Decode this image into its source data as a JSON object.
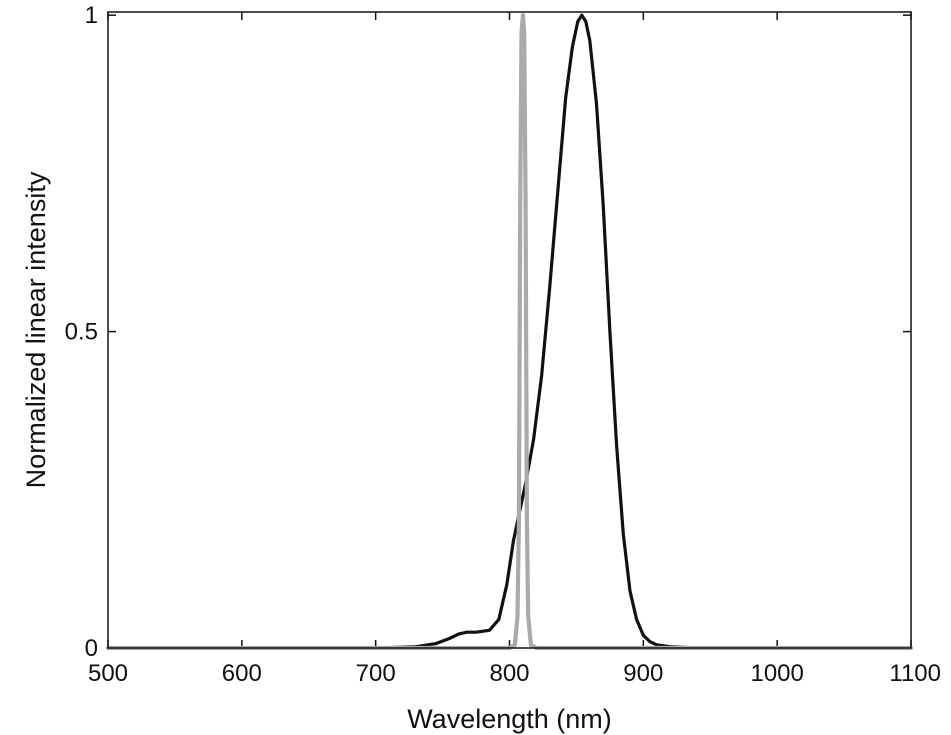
{
  "chart_data": {
    "type": "line",
    "title": "",
    "xlabel": "Wavelength (nm)",
    "ylabel": "Normalized linear intensity",
    "xlim": [
      500,
      1100
    ],
    "ylim": [
      0,
      1.005
    ],
    "grid": false,
    "legend": "none",
    "x_ticks": [
      500,
      600,
      700,
      800,
      900,
      1000,
      1100
    ],
    "x_tick_labels": [
      "500",
      "600",
      "700",
      "800",
      "900",
      "1000",
      "1100"
    ],
    "y_ticks": [
      0,
      0.5,
      1
    ],
    "y_tick_labels": [
      "0",
      "0.5",
      "1"
    ],
    "series": [
      {
        "color": "#111111",
        "x": [
          500,
          600,
          700,
          730,
          745,
          755,
          762,
          768,
          775,
          785,
          792,
          798,
          803,
          808,
          812,
          818,
          824,
          830,
          836,
          842,
          847,
          851,
          854,
          857,
          860,
          865,
          870,
          875,
          880,
          885,
          890,
          895,
          900,
          905,
          910,
          920,
          940,
          1000,
          1100
        ],
        "y": [
          0.0,
          0.0,
          0.0,
          0.002,
          0.007,
          0.015,
          0.022,
          0.025,
          0.025,
          0.028,
          0.045,
          0.1,
          0.17,
          0.22,
          0.26,
          0.33,
          0.43,
          0.57,
          0.72,
          0.87,
          0.95,
          0.99,
          1.0,
          0.99,
          0.96,
          0.86,
          0.7,
          0.5,
          0.32,
          0.18,
          0.09,
          0.045,
          0.02,
          0.01,
          0.005,
          0.002,
          0.0,
          0.0,
          0.0
        ]
      },
      {
        "color": "#aaaaaa",
        "x": [
          500,
          700,
          800,
          804,
          806,
          807,
          808,
          809,
          810,
          811,
          812,
          813,
          814,
          816,
          820,
          900,
          1100
        ],
        "y": [
          0.0,
          0.0,
          0.0,
          0.005,
          0.05,
          0.2,
          0.7,
          0.97,
          1.0,
          0.97,
          0.7,
          0.2,
          0.05,
          0.005,
          0.0,
          0.0,
          0.0
        ]
      }
    ]
  }
}
